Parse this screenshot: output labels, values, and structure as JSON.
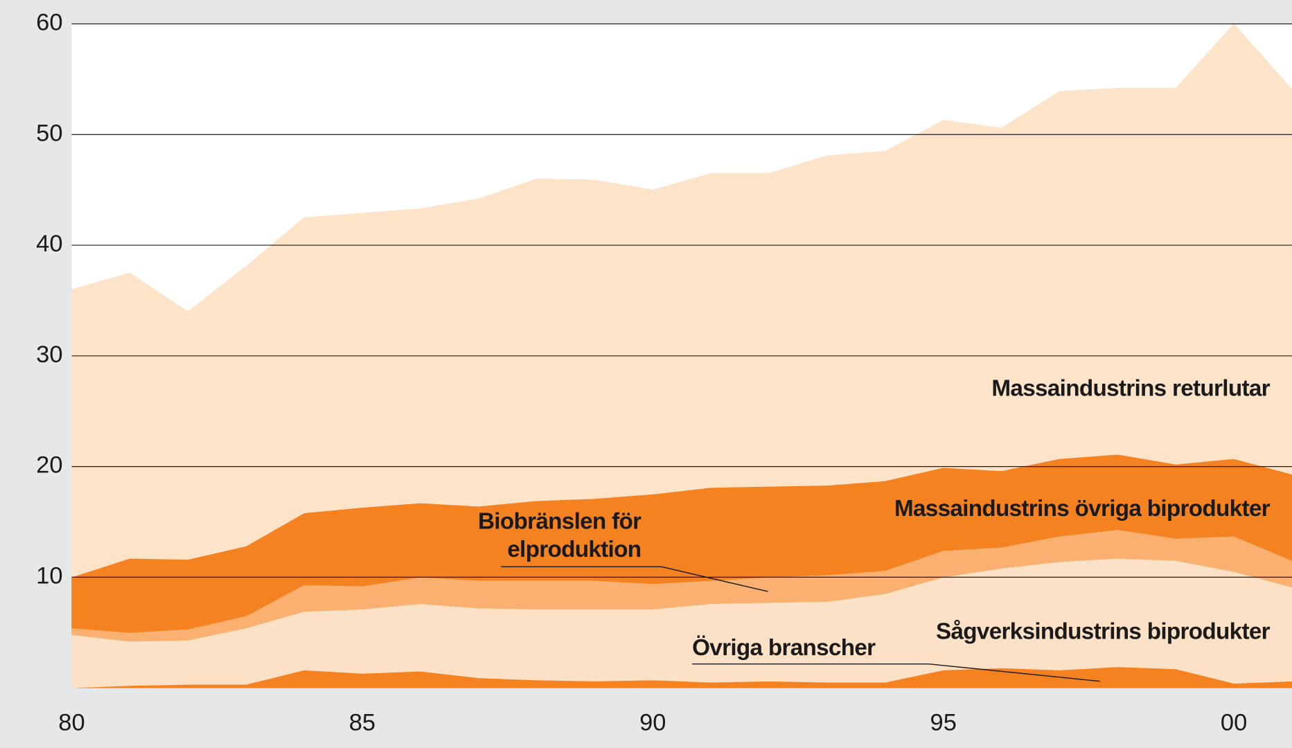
{
  "chart_data": {
    "type": "stacked_area",
    "x": [
      1980,
      1981,
      1982,
      1983,
      1984,
      1985,
      1986,
      1987,
      1988,
      1989,
      1990,
      1991,
      1992,
      1993,
      1994,
      1995,
      1996,
      1997,
      1998,
      1999,
      2000,
      2001
    ],
    "series": [
      {
        "name": "Övriga branscher",
        "color": "#f58220",
        "values": [
          0,
          0.2,
          0.3,
          0.3,
          1.6,
          1.3,
          1.5,
          0.9,
          0.7,
          0.6,
          0.7,
          0.5,
          0.6,
          0.5,
          0.5,
          1.6,
          1.8,
          1.6,
          1.9,
          1.7,
          0.4,
          0.6
        ]
      },
      {
        "name": "Sågverksindustrins biprodukter",
        "color": "#fde1c6",
        "values": [
          4.8,
          4.0,
          4.0,
          5.1,
          5.3,
          5.8,
          6.1,
          6.3,
          6.4,
          6.5,
          6.4,
          7.1,
          7.1,
          7.3,
          8.0,
          8.4,
          9.0,
          9.8,
          9.8,
          9.8,
          10.1,
          8.5
        ]
      },
      {
        "name": "Biobränslen för elproduktion",
        "color": "#f9b071",
        "values": [
          0.6,
          0.8,
          1.0,
          1.1,
          2.4,
          2.1,
          2.4,
          2.5,
          2.6,
          2.6,
          2.3,
          2.1,
          2.3,
          2.4,
          2.1,
          2.4,
          1.9,
          2.3,
          2.6,
          2.0,
          3.2,
          2.4
        ]
      },
      {
        "name": "Massaindustrins övriga biprodukter",
        "color": "#f58220",
        "values": [
          4.6,
          6.7,
          6.3,
          6.3,
          6.5,
          7.1,
          6.7,
          6.7,
          7.2,
          7.4,
          8.1,
          8.4,
          8.2,
          8.1,
          8.1,
          7.5,
          6.9,
          7.0,
          6.8,
          6.7,
          7.0,
          7.8
        ]
      },
      {
        "name": "Massaindustrins returlutar",
        "color": "#fde3c8",
        "values": [
          26.0,
          25.8,
          22.4,
          25.3,
          26.7,
          26.6,
          26.6,
          27.8,
          29.1,
          28.8,
          27.5,
          28.4,
          28.3,
          29.8,
          29.8,
          31.4,
          31.0,
          33.2,
          33.1,
          34.0,
          39.3,
          34.8
        ]
      }
    ],
    "xlim": [
      1980,
      2001
    ],
    "xticks": [
      {
        "value": 1980,
        "label": "80"
      },
      {
        "value": 1985,
        "label": "85"
      },
      {
        "value": 1990,
        "label": "90"
      },
      {
        "value": 1995,
        "label": "95"
      },
      {
        "value": 2000,
        "label": "00"
      }
    ],
    "ylim": [
      0,
      60
    ],
    "yticks": [
      10,
      20,
      30,
      40,
      50,
      60
    ],
    "grid": true
  }
}
